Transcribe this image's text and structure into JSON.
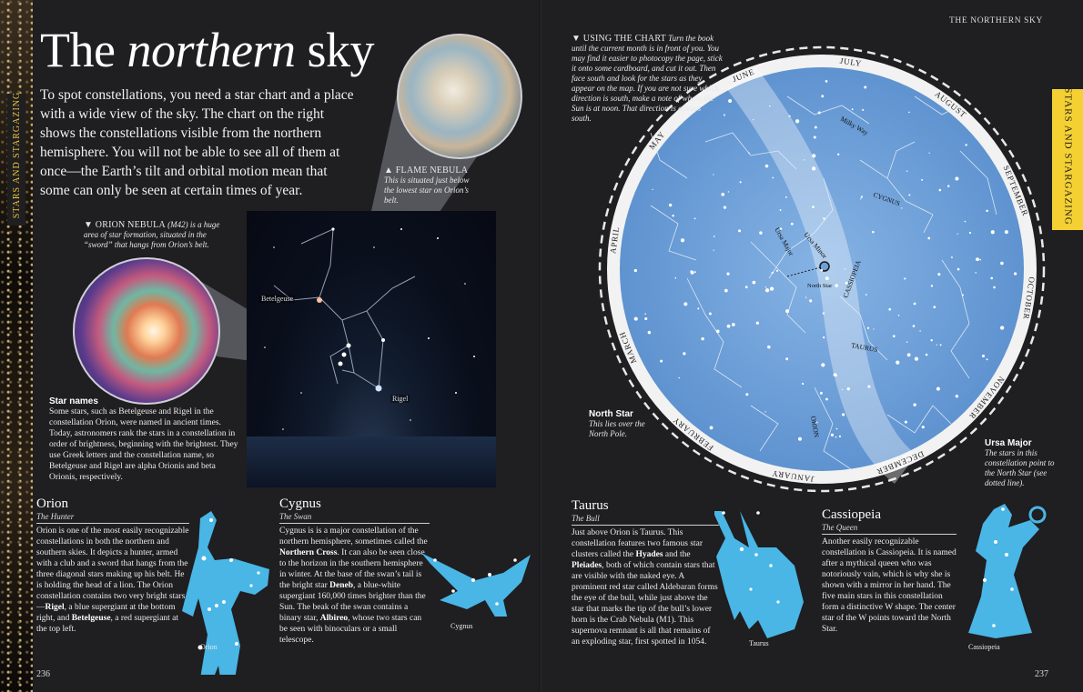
{
  "side_label": "STARS AND STARGAZING",
  "header_right": "THE NORTHERN SKY",
  "title": {
    "pre": "The ",
    "italic": "northern",
    "post": " sky"
  },
  "intro": "To spot constellations, you need a star chart and a place with a wide view of the sky. The chart on the right shows the constellations visible from the northern hemisphere. You will not be able to see all of them at once—the Earth’s tilt and orbital motion mean that some can only be seen at certain times of year.",
  "flame_nebula": {
    "title": "▲ FLAME NEBULA",
    "text": "This is situated just below the lowest star on Orion’s belt."
  },
  "orion_nebula": {
    "title": "▼ ORION NEBULA",
    "title_italic": " (M42) is a huge area of star formation, situated in the “sword” that hangs from Orion’s belt."
  },
  "photo_labels": {
    "betelgeuse": "Betelgeuse",
    "rigel": "Rigel"
  },
  "star_names": {
    "title": "Star names",
    "text": "Some stars, such as Betelgeuse and Rigel in the constellation Orion, were named in ancient times. Today, astronomers rank the stars in a constellation in order of brightness, beginning with the brightest. They use Greek letters and the constellation name, so Betelgeuse and Rigel are alpha Orionis and beta Orionis, respectively."
  },
  "orion": {
    "title": "Orion",
    "sub": "The Hunter",
    "p1": "Orion is one of the most easily recognizable constellations in both the northern and southern skies. It depicts a hunter, armed with a club and a sword that hangs from the three diagonal stars making up his belt. He is holding the head of a lion. The Orion constellation contains two very bright stars—",
    "b1": "Rigel",
    "p2": ", a blue supergiant at the bottom right, and ",
    "b2": "Betelgeuse",
    "p3": ", a red supergiant at the top left.",
    "fig_label": "Orion"
  },
  "cygnus": {
    "title": "Cygnus",
    "sub": "The Swan",
    "p1": "Cygnus is is a major constellation of the northern hemisphere, sometimes called the ",
    "b1": "Northern Cross",
    "p2": ". It can also be seen close to the horizon in the southern hemisphere in winter. At the base of the swan’s tail is the bright star ",
    "b2": "Deneb",
    "p3": ", a blue-white supergiant 160,000 times brighter than the Sun. The beak of the swan contains a binary star, ",
    "b3": "Albireo",
    "p4": ", whose two stars can be seen with binoculars or a small telescope.",
    "fig_label": "Cygnus"
  },
  "taurus": {
    "title": "Taurus",
    "sub": "The Bull",
    "p1": "Just above Orion is Taurus. This constellation features two famous star clusters called the ",
    "b1": "Hyades",
    "p2": " and the ",
    "b2": "Pleiades",
    "p3": ", both of which contain stars that are visible with the naked eye. A prominent red star called Aldebaran forms the eye of the bull, while just above the star that marks the tip of the bull’s lower horn is the Crab Nebula (M1). This supernova remnant is all that remains of an exploding star, first spotted in 1054.",
    "fig_label": "Taurus"
  },
  "cassiopeia": {
    "title": "Cassiopeia",
    "sub": "The Queen",
    "text": "Another easily recognizable constellation is Cassiopeia. It is named after a mythical queen who was notoriously vain, which is why she is shown with a mirror in her hand. The five main stars in this constellation form a distinctive W shape. The center star of the W points toward the North Star.",
    "fig_label": "Cassiopeia"
  },
  "using_chart": {
    "title": "▼ USING THE CHART",
    "text": " Turn the book until the current month is in front of you. You may find it easier to photocopy the page, stick it onto some cardboard, and cut it out. Then face south and look for the stars as they appear on the map. If you are not sure which direction is south, make a note of where the Sun is at noon. That direction is always south."
  },
  "north_star": {
    "title": "North Star",
    "text": "This lies over the North Pole.",
    "chart_label": "North Star"
  },
  "ursa_major": {
    "title": "Ursa Major",
    "text": "The stars in this constellation point to the North Star (see dotted line)."
  },
  "months": [
    "JULY",
    "AUGUST",
    "SEPTEMBER",
    "OCTOBER",
    "NOVEMBER",
    "DECEMBER",
    "JANUARY",
    "FEBRUARY",
    "MARCH",
    "APRIL",
    "MAY",
    "JUNE"
  ],
  "chart_names": {
    "milky_way": "Milky Way",
    "cygnus": "CYGNUS",
    "cassiopeia": "CASSIOPEIA",
    "taurus": "TAURUS",
    "orion": "ORION",
    "ursa_minor": "Ursa Minor",
    "ursa_major": "Ursa Major"
  },
  "page_left": "236",
  "page_right": "237",
  "colors": {
    "accent_yellow": "#f4d033",
    "sky_blue": "#6f9fd6",
    "figure_blue": "#49b6e6"
  }
}
